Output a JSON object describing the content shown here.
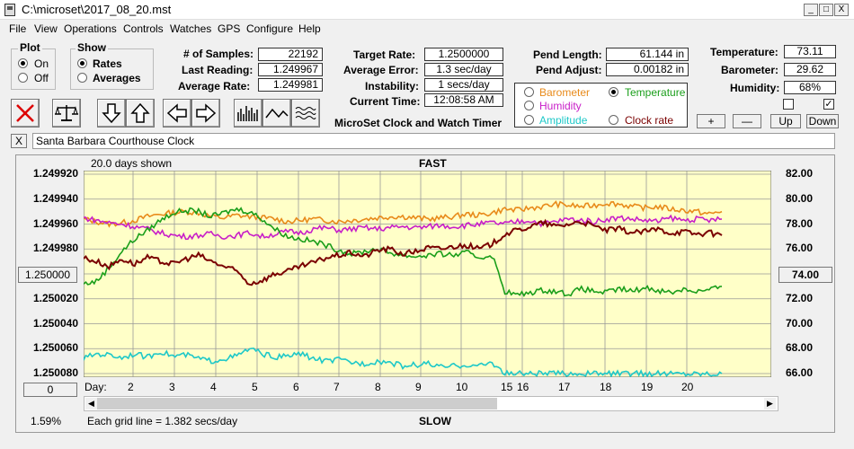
{
  "window": {
    "title": "C:\\microset\\2017_08_20.mst",
    "minimize": "_",
    "maximize": "□",
    "close": "X"
  },
  "menu": [
    "File",
    "View",
    "Operations",
    "Controls",
    "Watches",
    "GPS",
    "Configure",
    "Help"
  ],
  "plot_group": {
    "title": "Plot",
    "on": "On",
    "off": "Off",
    "selected": "On"
  },
  "show_group": {
    "title": "Show",
    "rates": "Rates",
    "averages": "Averages",
    "selected": "Rates"
  },
  "stats": {
    "samples_label": "# of Samples:",
    "samples": "22192",
    "last_label": "Last Reading:",
    "last": "1.249967",
    "avg_rate_label": "Average Rate:",
    "avg_rate": "1.249981"
  },
  "rates": {
    "target_label": "Target Rate:",
    "target": "1.2500000",
    "avg_err_label": "Average Error:",
    "avg_err": "1.3 sec/day",
    "instab_label": "Instability:",
    "instab": "1 secs/day",
    "time_label": "Current Time:",
    "time": "12:08:58 AM",
    "app_name": "MicroSet Clock and Watch Timer"
  },
  "pend": {
    "length_label": "Pend Length:",
    "length": "61.144 in",
    "adjust_label": "Pend Adjust:",
    "adjust": "0.00182 in"
  },
  "series_select": {
    "barometer": "Barometer",
    "temperature": "Temperature",
    "humidity": "Humidity",
    "amplitude": "Amplitude",
    "clock_rate": "Clock rate",
    "selected": "Temperature",
    "colors": {
      "barometer": "#e88a1a",
      "temperature": "#1a9e1a",
      "humidity": "#c81ec8",
      "amplitude": "#1ec8c8",
      "clock_rate": "#7a0000"
    }
  },
  "env": {
    "temp_label": "Temperature:",
    "temp": "73.11",
    "baro_label": "Barometer:",
    "baro": "29.62",
    "hum_label": "Humidity:",
    "hum": "68%"
  },
  "adjust_buttons": {
    "plus": "+",
    "minus": "—",
    "up": "Up",
    "down": "Down"
  },
  "clock_name": {
    "close": "X",
    "value": "Santa Barbara Courthouse Clock"
  },
  "chart_header": {
    "days_shown": "20.0 days shown",
    "fast": "FAST",
    "slow": "SLOW",
    "grid_note": "Each grid line = 1.382 secs/day",
    "percent": "1.59%",
    "day_label": "Day:",
    "left_button": "1.250000",
    "right_button": "74.00",
    "zero_button": "0"
  },
  "chart_data": {
    "type": "line",
    "y_left_ticks": [
      "1.249920",
      "1.249940",
      "1.249960",
      "1.249980",
      "1.250000",
      "1.250020",
      "1.250040",
      "1.250060",
      "1.250080"
    ],
    "y_right_ticks": [
      "82.00",
      "80.00",
      "78.00",
      "76.00",
      "74.00",
      "72.00",
      "70.00",
      "68.00",
      "66.00"
    ],
    "x_ticks": [
      "2",
      "3",
      "4",
      "5",
      "6",
      "7",
      "8",
      "9",
      "10",
      "15",
      "16",
      "17",
      "18",
      "19",
      "20"
    ],
    "ylim_left": [
      1.24992,
      1.25008
    ],
    "ylim_right": [
      66,
      82
    ],
    "series": [
      {
        "color": "#e88a1a",
        "x": [
          0,
          1,
          2,
          3,
          4,
          5,
          6,
          7,
          8,
          9,
          10,
          11,
          12,
          13,
          14,
          15,
          16,
          17,
          18,
          19,
          20,
          21,
          22,
          23,
          24,
          25,
          26,
          27,
          28,
          29,
          30,
          31,
          32,
          33,
          34,
          35,
          36,
          37,
          38,
          39,
          40,
          41,
          42,
          43,
          44,
          45,
          46,
          47,
          48,
          49,
          50
        ],
        "y": [
          78.4,
          78.2,
          78.0,
          78.1,
          78.3,
          78.6,
          78.8,
          78.9,
          79.0,
          78.9,
          78.6,
          78.5,
          78.7,
          78.6,
          78.5,
          78.4,
          78.2,
          78.3,
          78.4,
          78.3,
          78.2,
          78.3,
          78.4,
          78.5,
          78.6,
          78.6,
          78.5,
          78.4,
          78.5,
          78.6,
          78.8,
          78.7,
          78.9,
          79.2,
          79.1,
          79.3,
          79.4,
          79.6,
          79.5,
          79.4,
          79.5,
          79.7,
          79.6,
          79.4,
          79.3,
          79.4,
          79.2,
          79.1,
          79.0,
          78.8,
          79.0
        ]
      },
      {
        "color": "#c81ec8",
        "x": [
          0,
          1,
          2,
          3,
          4,
          5,
          6,
          7,
          8,
          9,
          10,
          11,
          12,
          13,
          14,
          15,
          16,
          17,
          18,
          19,
          20,
          21,
          22,
          23,
          24,
          25,
          26,
          27,
          28,
          29,
          30,
          31,
          32,
          33,
          34,
          35,
          36,
          37,
          38,
          39,
          40,
          41,
          42,
          43,
          44,
          45,
          46,
          47,
          48,
          49,
          50
        ],
        "y": [
          78.5,
          78.3,
          78.1,
          78.0,
          77.8,
          77.6,
          77.3,
          77.1,
          77.0,
          77.1,
          77.2,
          77.0,
          77.1,
          77.3,
          77.0,
          77.2,
          77.4,
          77.3,
          77.6,
          77.7,
          77.5,
          77.6,
          77.7,
          77.6,
          77.7,
          77.8,
          77.7,
          77.8,
          77.9,
          77.8,
          77.9,
          78.0,
          78.1,
          78.0,
          78.2,
          78.3,
          78.0,
          78.2,
          78.4,
          78.3,
          78.2,
          78.4,
          78.5,
          78.4,
          78.3,
          78.2,
          78.5,
          78.3,
          78.4,
          78.3,
          78.4
        ]
      },
      {
        "color": "#1a9e1a",
        "x": [
          0,
          1,
          2,
          3,
          4,
          5,
          6,
          7,
          8,
          9,
          10,
          11,
          12,
          13,
          14,
          15,
          16,
          17,
          18,
          19,
          20,
          21,
          22,
          23,
          24,
          25,
          26,
          27,
          28,
          29,
          30,
          31,
          32,
          33,
          34,
          35,
          36,
          37,
          38,
          39,
          40,
          41,
          42,
          43,
          44,
          45,
          46,
          47,
          48,
          49,
          50
        ],
        "y": [
          73.2,
          73.4,
          74.5,
          75.8,
          76.8,
          77.5,
          78.3,
          78.9,
          79.1,
          79.0,
          78.6,
          78.9,
          79.2,
          79.0,
          78.4,
          77.6,
          77.0,
          76.8,
          76.6,
          76.3,
          75.9,
          75.6,
          75.8,
          76.0,
          75.7,
          75.5,
          75.4,
          75.5,
          75.6,
          75.5,
          75.7,
          75.3,
          75.5,
          72.6,
          72.3,
          72.5,
          72.7,
          72.6,
          72.4,
          72.8,
          72.6,
          72.5,
          72.8,
          72.6,
          72.9,
          72.7,
          72.5,
          72.8,
          72.6,
          72.7,
          73.0
        ]
      },
      {
        "color": "#7a0000",
        "x": [
          0,
          1,
          2,
          3,
          4,
          5,
          6,
          7,
          8,
          9,
          10,
          11,
          12,
          13,
          14,
          15,
          16,
          17,
          18,
          19,
          20,
          21,
          22,
          23,
          24,
          25,
          26,
          27,
          28,
          29,
          30,
          31,
          32,
          33,
          34,
          35,
          36,
          37,
          38,
          39,
          40,
          41,
          42,
          43,
          44,
          45,
          46,
          47,
          48,
          49,
          50
        ],
        "y": [
          75.3,
          75.0,
          74.6,
          75.2,
          74.8,
          75.3,
          75.0,
          74.8,
          75.2,
          75.5,
          75.0,
          74.6,
          74.2,
          73.2,
          73.5,
          74.0,
          74.2,
          74.6,
          74.9,
          75.3,
          75.5,
          75.7,
          75.4,
          75.9,
          76.0,
          75.6,
          75.8,
          76.1,
          76.0,
          76.2,
          76.3,
          76.0,
          76.4,
          77.2,
          77.5,
          77.8,
          78.1,
          77.8,
          78.0,
          78.2,
          77.8,
          77.5,
          77.6,
          77.3,
          77.4,
          77.6,
          77.3,
          77.4,
          77.2,
          77.3,
          77.1
        ]
      },
      {
        "color": "#1ec8c8",
        "x": [
          0,
          1,
          2,
          3,
          4,
          5,
          6,
          7,
          8,
          9,
          10,
          11,
          12,
          13,
          14,
          15,
          16,
          17,
          18,
          19,
          20,
          21,
          22,
          23,
          24,
          25,
          26,
          27,
          28,
          29,
          30,
          31,
          32,
          33,
          34,
          35,
          36,
          37,
          38,
          39,
          40,
          41,
          42,
          43,
          44,
          45,
          46,
          47,
          48,
          49,
          50
        ],
        "y": [
          67.2,
          67.6,
          67.5,
          67.3,
          67.6,
          67.3,
          67.8,
          67.4,
          67.5,
          67.2,
          67.0,
          67.2,
          67.4,
          68.0,
          67.6,
          67.3,
          67.4,
          67.6,
          67.2,
          67.0,
          67.1,
          66.9,
          66.8,
          67.0,
          66.9,
          66.6,
          66.7,
          66.8,
          66.5,
          66.6,
          66.7,
          66.6,
          66.9,
          66.0,
          66.0,
          66.0,
          66.0,
          66.0,
          66.0,
          66.0,
          66.0,
          66.0,
          66.0,
          66.0,
          66.0,
          66.0,
          66.0,
          66.0,
          66.0,
          66.0,
          66.0
        ]
      }
    ]
  }
}
